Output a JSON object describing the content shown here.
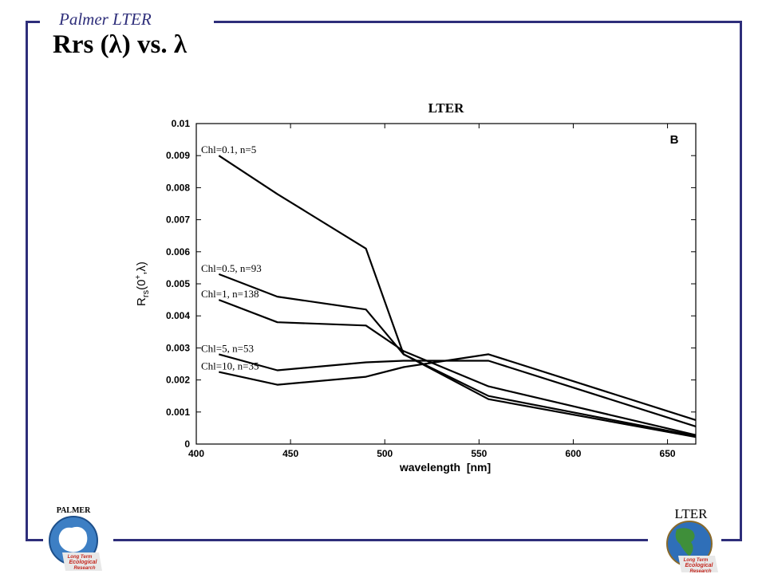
{
  "slide": {
    "header": "Palmer LTER",
    "title": "Rrs (λ) vs. λ",
    "colors": {
      "frame": "#2e2e7a",
      "text": "#000000"
    }
  },
  "logos": {
    "left": {
      "caption": "PALMER",
      "ribbon_line1": "Long Term",
      "ribbon_line2": "Ecological",
      "ribbon_line3": "Research",
      "icon": "antarctica-globe-icon"
    },
    "right": {
      "caption": "LTER",
      "ribbon_line1": "Long Term",
      "ribbon_line2": "Ecological",
      "ribbon_line3": "Research",
      "icon": "earth-globe-icon"
    }
  },
  "chart_data": {
    "type": "line",
    "title": "LTER",
    "panel_label": "B",
    "xlabel": "wavelength  [nm]",
    "ylabel_main": "R",
    "ylabel_sub": "rs",
    "ylabel_rest": "(0",
    "ylabel_sup": "+",
    "ylabel_tail": ",λ)",
    "xlim": [
      400,
      665
    ],
    "ylim": [
      0,
      0.01
    ],
    "xticks": [
      400,
      450,
      500,
      550,
      600,
      650
    ],
    "yticks": [
      "0",
      "0.001",
      "0.002",
      "0.003",
      "0.004",
      "0.005",
      "0.006",
      "0.007",
      "0.008",
      "0.009",
      "0.01"
    ],
    "grid": false,
    "x": [
      412,
      443,
      490,
      510,
      555,
      665
    ],
    "series": [
      {
        "name": "Chl=0.1, n=5",
        "values": [
          0.009,
          0.0078,
          0.0061,
          0.0028,
          0.0014,
          0.00022
        ]
      },
      {
        "name": "Chl=0.5, n=93",
        "values": [
          0.0053,
          0.0046,
          0.0042,
          0.0028,
          0.0015,
          0.00025
        ]
      },
      {
        "name": "Chl=1, n=138",
        "values": [
          0.0045,
          0.0038,
          0.0037,
          0.0029,
          0.0018,
          0.00028
        ]
      },
      {
        "name": "Chl=5, n=53",
        "values": [
          0.0028,
          0.0023,
          0.00255,
          0.0026,
          0.0026,
          0.00055
        ]
      },
      {
        "name": "Chl=10, n=35",
        "values": [
          0.00225,
          0.00185,
          0.0021,
          0.0024,
          0.0028,
          0.00075
        ]
      }
    ]
  }
}
